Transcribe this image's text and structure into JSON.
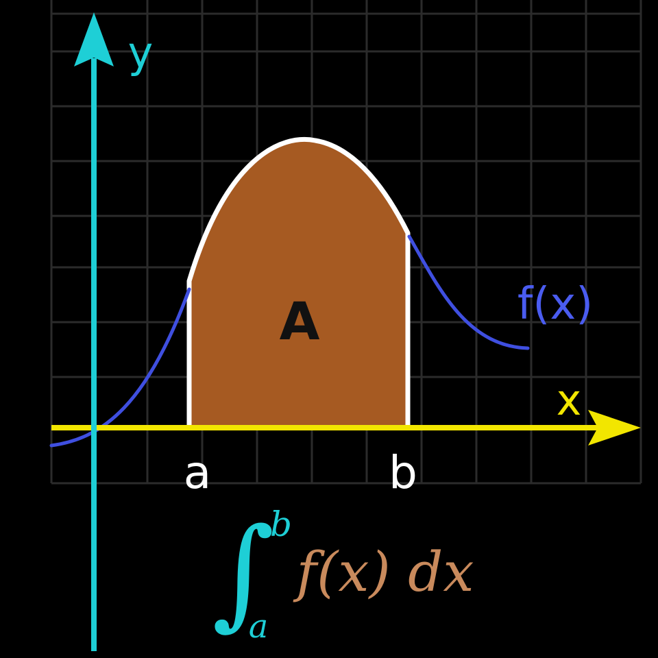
{
  "diagram": {
    "axes": {
      "y_label": "y",
      "x_label": "x"
    },
    "curve": {
      "label": "f(x)"
    },
    "bounds": {
      "lower": "a",
      "upper": "b"
    },
    "area": {
      "label": "A"
    },
    "formula": {
      "integral_sign": "∫",
      "upper_limit": "b",
      "lower_limit": "a",
      "integrand": "f(x) dx"
    }
  },
  "colors": {
    "background": "#000000",
    "grid": "#2b2b2b",
    "y_axis": "#1ecfd6",
    "x_axis": "#f2e600",
    "curve": "#3f4fe0",
    "area_fill": "#a65a22",
    "area_outline": "#ffffff",
    "area_label": "#111111",
    "bound_labels": "#ffffff",
    "curve_label": "#4a5cf0",
    "integral_sign": "#1ecfd6",
    "integrand": "#c98a5c"
  }
}
